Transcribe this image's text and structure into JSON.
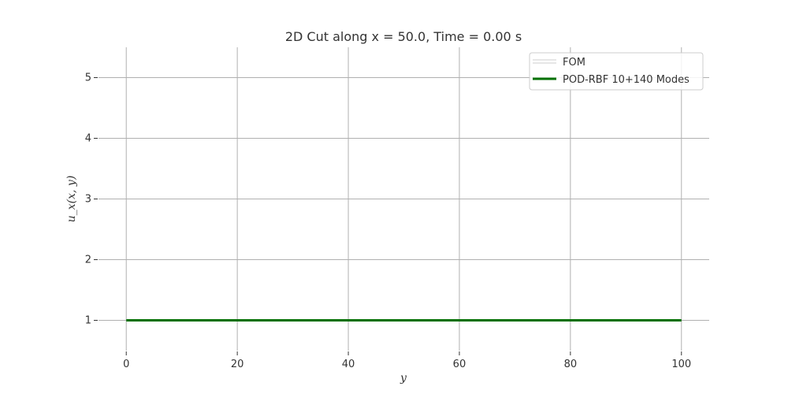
{
  "chart_data": {
    "type": "line",
    "title": "2D Cut along x = 50.0, Time = 0.00 s",
    "xlabel": "y",
    "ylabel": "u_x(x, y)",
    "xlim": [
      -5,
      105
    ],
    "ylim": [
      0.5,
      5.5
    ],
    "xticks": [
      0,
      20,
      40,
      60,
      80,
      100
    ],
    "yticks": [
      1,
      2,
      3,
      4,
      5
    ],
    "xtick_labels": [
      "0",
      "20",
      "40",
      "60",
      "80",
      "100"
    ],
    "ytick_labels": [
      "1",
      "2",
      "3",
      "4",
      "5"
    ],
    "grid": true,
    "legend_position": "top-right",
    "series": [
      {
        "name": "FOM",
        "color": "#ffffff",
        "x": [
          0,
          100
        ],
        "y": [
          1,
          1
        ]
      },
      {
        "name": "POD-RBF 10+140 Modes",
        "color": "#007000",
        "x": [
          0,
          100
        ],
        "y": [
          1,
          1
        ]
      }
    ]
  }
}
